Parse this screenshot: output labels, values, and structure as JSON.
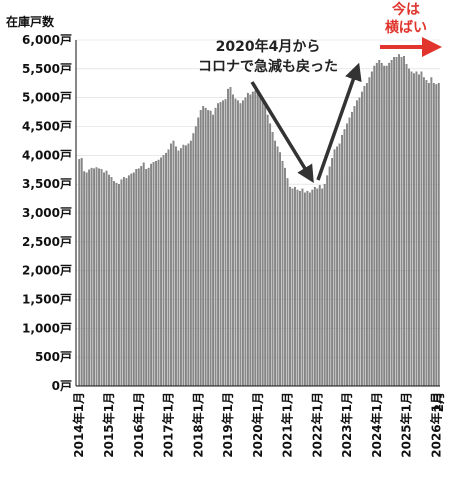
{
  "chart_data": {
    "type": "bar",
    "unit_label": "在庫戸数",
    "ylim": [
      0,
      6000
    ],
    "y_ticks": [
      "0戸",
      "500戸",
      "1,000戸",
      "1,500戸",
      "2,000戸",
      "2,500戸",
      "3,000戸",
      "3,500戸",
      "4,000戸",
      "4,500戸",
      "5,000戸",
      "5,500戸",
      "6,000戸"
    ],
    "x_tick_labels": [
      "2014年1月",
      "2015年1月",
      "2016年1月",
      "2017年1月",
      "2018年1月",
      "2019年1月",
      "2020年1月",
      "2021年1月",
      "2022年1月",
      "2023年1月",
      "2024年1月",
      "2025年1月",
      "2026年1月",
      "2月"
    ],
    "start_month": "2014-01",
    "end_month": "2026-02",
    "values": [
      3930,
      3950,
      3720,
      3700,
      3750,
      3780,
      3770,
      3790,
      3770,
      3760,
      3700,
      3730,
      3660,
      3620,
      3550,
      3520,
      3500,
      3580,
      3620,
      3600,
      3650,
      3680,
      3700,
      3760,
      3770,
      3810,
      3870,
      3760,
      3780,
      3850,
      3880,
      3900,
      3920,
      3960,
      4000,
      4040,
      4100,
      4200,
      4250,
      4150,
      4080,
      4120,
      4180,
      4170,
      4200,
      4250,
      4380,
      4500,
      4650,
      4780,
      4850,
      4820,
      4780,
      4770,
      4700,
      4820,
      4900,
      4920,
      4950,
      4970,
      5150,
      5180,
      5050,
      4980,
      4950,
      4900,
      4950,
      5000,
      5080,
      5050,
      5100,
      5120,
      5080,
      5020,
      4950,
      4900,
      4700,
      4550,
      4400,
      4250,
      4150,
      4050,
      3900,
      3780,
      3600,
      3450,
      3420,
      3450,
      3400,
      3380,
      3420,
      3350,
      3380,
      3350,
      3400,
      3450,
      3420,
      3480,
      3420,
      3500,
      3650,
      3800,
      3950,
      4100,
      4150,
      4200,
      4350,
      4450,
      4550,
      4650,
      4750,
      4850,
      4950,
      5000,
      5100,
      5200,
      5250,
      5350,
      5450,
      5550,
      5600,
      5650,
      5600,
      5550,
      5550,
      5600,
      5650,
      5700,
      5700,
      5750,
      5700,
      5720,
      5580,
      5500,
      5450,
      5420,
      5450,
      5400,
      5450,
      5350,
      5300,
      5250,
      5350,
      5250,
      5230,
      5250
    ],
    "annotations": {
      "drop_note": [
        "2020年4月から",
        "コロナで急減も戻った"
      ],
      "flat_note": [
        "今は",
        "横ばい"
      ]
    }
  },
  "colors": {
    "bar": "#8a8a8a",
    "bar_edge": "#555555",
    "axis": "#111111",
    "grid": "#d9d9d9",
    "arrow": "#333333",
    "accent": "#e0342c"
  }
}
